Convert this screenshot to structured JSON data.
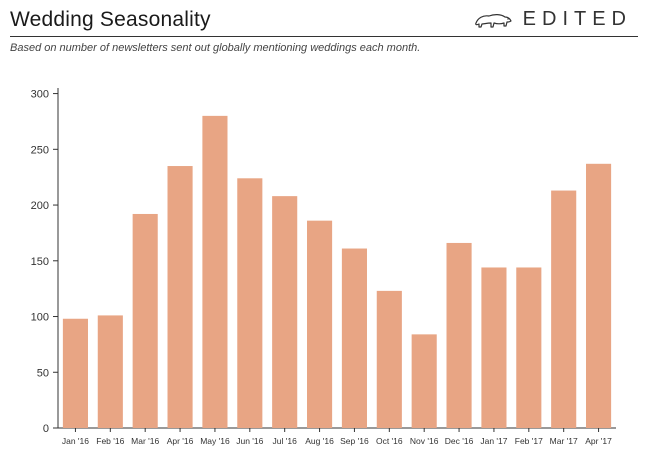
{
  "header": {
    "title": "Wedding Seasonality",
    "logo_text": "EDITED",
    "subtitle": "Based on number of newsletters sent out globally mentioning weddings each month."
  },
  "chart_data": {
    "type": "bar",
    "categories": [
      "Jan '16",
      "Feb '16",
      "Mar '16",
      "Apr '16",
      "May '16",
      "Jun '16",
      "Jul '16",
      "Aug '16",
      "Sep '16",
      "Oct '16",
      "Nov '16",
      "Dec '16",
      "Jan '17",
      "Feb '17",
      "Mar '17",
      "Apr '17"
    ],
    "values": [
      98,
      101,
      192,
      235,
      280,
      224,
      208,
      186,
      161,
      123,
      84,
      166,
      144,
      144,
      213,
      237
    ],
    "yticks": [
      0,
      50,
      100,
      150,
      200,
      250,
      300
    ],
    "ylim": [
      0,
      305
    ],
    "bar_color": "#e8a584",
    "axis_color": "#333333",
    "grid": false,
    "legend": "none"
  }
}
